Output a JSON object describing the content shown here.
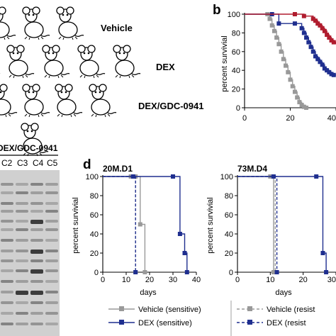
{
  "panel_labels": {
    "b": "b",
    "d": "d"
  },
  "mouse_groups": [
    "Vehicle",
    "DEX",
    "DEX/GDC-0941"
  ],
  "gel": {
    "title": "DEX/GDC-0941",
    "lanes": [
      "C2",
      "C3",
      "C4",
      "C5"
    ]
  },
  "chart_data": [
    {
      "id": "b",
      "type": "line",
      "style": "step",
      "title": "",
      "xlabel": "",
      "ylabel": "percent survivial",
      "xlim": [
        0,
        40
      ],
      "ylim": [
        0,
        100
      ],
      "xticks": [
        0,
        20,
        40
      ],
      "yticks": [
        0,
        20,
        40,
        60,
        80,
        100
      ],
      "series": [
        {
          "color": "#999999",
          "x": [
            0,
            10,
            11,
            12,
            13,
            14,
            15,
            16,
            17,
            18,
            19,
            20,
            21,
            22,
            23,
            24,
            25,
            26,
            27
          ],
          "y": [
            100,
            100,
            95,
            88,
            82,
            75,
            68,
            60,
            52,
            45,
            38,
            30,
            23,
            17,
            11,
            6,
            3,
            1,
            0
          ]
        },
        {
          "color": "#1f2f8f",
          "x": [
            0,
            12,
            15,
            22,
            25,
            26,
            27,
            28,
            29,
            30,
            31,
            32,
            33,
            34,
            35,
            36,
            37,
            38,
            39,
            40
          ],
          "y": [
            100,
            100,
            90,
            90,
            85,
            80,
            75,
            70,
            65,
            60,
            55,
            52,
            49,
            46,
            42,
            40,
            38,
            36,
            35,
            35
          ]
        },
        {
          "color": "#b01c2e",
          "x": [
            0,
            22,
            26,
            30,
            31,
            32,
            33,
            34,
            35,
            36,
            37,
            38,
            39,
            40
          ],
          "y": [
            100,
            100,
            98,
            95,
            93,
            90,
            88,
            85,
            82,
            78,
            75,
            72,
            70,
            68
          ]
        }
      ]
    },
    {
      "id": "d1",
      "type": "line",
      "style": "step",
      "title": "20M.D1",
      "xlabel": "days",
      "ylabel": "percent survivial",
      "xlim": [
        0,
        40
      ],
      "ylim": [
        0,
        100
      ],
      "xticks": [
        0,
        10,
        20,
        30,
        40
      ],
      "yticks": [
        0,
        20,
        40,
        60,
        80,
        100
      ],
      "series": [
        {
          "name": "Vehicle (sensitive)",
          "color": "#999999",
          "dash": false,
          "x": [
            0,
            14,
            16,
            18
          ],
          "y": [
            100,
            100,
            50,
            0
          ]
        },
        {
          "name": "Vehicle (resistant)",
          "color": "#999999",
          "dash": true,
          "x": [
            0,
            12,
            14
          ],
          "y": [
            100,
            100,
            0
          ]
        },
        {
          "name": "DEX (sensitive)",
          "color": "#1f2f8f",
          "dash": false,
          "x": [
            0,
            30,
            33,
            35,
            36
          ],
          "y": [
            100,
            100,
            40,
            20,
            0
          ]
        },
        {
          "name": "DEX (resistant)",
          "color": "#1f2f8f",
          "dash": true,
          "x": [
            0,
            13,
            14
          ],
          "y": [
            100,
            100,
            0
          ]
        }
      ]
    },
    {
      "id": "d2",
      "type": "line",
      "style": "step",
      "title": "73M.D4",
      "xlabel": "days",
      "ylabel": "percent survivial",
      "xlim": [
        0,
        30
      ],
      "ylim": [
        0,
        100
      ],
      "xticks": [
        0,
        10,
        20,
        30
      ],
      "yticks": [
        0,
        20,
        40,
        60,
        80,
        100
      ],
      "series": [
        {
          "name": "Vehicle (sensitive)",
          "color": "#999999",
          "dash": false,
          "x": [
            0,
            10,
            11
          ],
          "y": [
            100,
            100,
            0
          ]
        },
        {
          "name": "Vehicle (resistant)",
          "color": "#999999",
          "dash": true,
          "x": [
            0,
            10.5,
            11.5
          ],
          "y": [
            100,
            100,
            0
          ]
        },
        {
          "name": "DEX (sensitive)",
          "color": "#1f2f8f",
          "dash": false,
          "x": [
            0,
            24,
            26,
            27
          ],
          "y": [
            100,
            100,
            20,
            0
          ]
        },
        {
          "name": "DEX (resistant)",
          "color": "#1f2f8f",
          "dash": true,
          "x": [
            0,
            11,
            12
          ],
          "y": [
            100,
            100,
            0
          ]
        }
      ]
    }
  ],
  "legend": [
    {
      "label": "Vehicle (sensitive)",
      "color": "#999999",
      "dash": false
    },
    {
      "label": "Vehicle (resist",
      "color": "#999999",
      "dash": true
    },
    {
      "label": "DEX (sensitive)",
      "color": "#1f2f8f",
      "dash": false
    },
    {
      "label": "DEX (resist",
      "color": "#1f2f8f",
      "dash": true
    }
  ]
}
